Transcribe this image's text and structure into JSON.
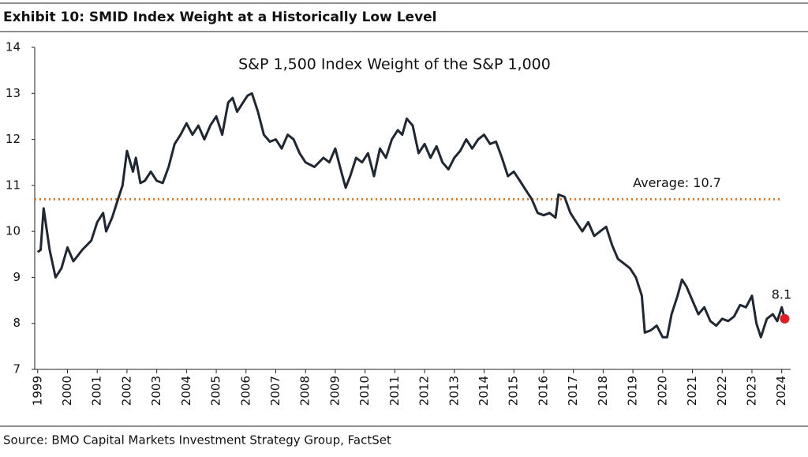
{
  "exhibit_title": "Exhibit 10: SMID Index Weight at a Historically Low Level",
  "source": "Source: BMO Capital Markets Investment Strategy Group, FactSet",
  "chart_data": {
    "type": "line",
    "title": "S&P 1,500 Index Weight of the S&P 1,000",
    "x": [
      1999.0,
      1999.1,
      1999.2,
      1999.4,
      1999.6,
      1999.8,
      2000.0,
      2000.2,
      2000.5,
      2000.8,
      2001.0,
      2001.2,
      2001.3,
      2001.5,
      2001.7,
      2001.85,
      2002.0,
      2002.2,
      2002.3,
      2002.45,
      2002.6,
      2002.8,
      2003.0,
      2003.2,
      2003.4,
      2003.6,
      2003.8,
      2004.0,
      2004.2,
      2004.4,
      2004.6,
      2004.8,
      2005.0,
      2005.2,
      2005.4,
      2005.55,
      2005.7,
      2005.9,
      2006.05,
      2006.2,
      2006.4,
      2006.6,
      2006.8,
      2007.0,
      2007.2,
      2007.4,
      2007.6,
      2007.8,
      2008.0,
      2008.3,
      2008.6,
      2008.8,
      2009.0,
      2009.2,
      2009.35,
      2009.5,
      2009.7,
      2009.9,
      2010.1,
      2010.3,
      2010.5,
      2010.7,
      2010.9,
      2011.1,
      2011.25,
      2011.4,
      2011.6,
      2011.8,
      2012.0,
      2012.2,
      2012.4,
      2012.6,
      2012.8,
      2013.0,
      2013.2,
      2013.4,
      2013.6,
      2013.8,
      2014.0,
      2014.2,
      2014.4,
      2014.6,
      2014.8,
      2015.0,
      2015.2,
      2015.4,
      2015.6,
      2015.8,
      2016.0,
      2016.2,
      2016.4,
      2016.5,
      2016.7,
      2016.9,
      2017.1,
      2017.3,
      2017.5,
      2017.7,
      2017.9,
      2018.1,
      2018.3,
      2018.5,
      2018.7,
      2018.9,
      2019.1,
      2019.3,
      2019.4,
      2019.6,
      2019.8,
      2020.0,
      2020.15,
      2020.3,
      2020.5,
      2020.65,
      2020.8,
      2021.0,
      2021.2,
      2021.4,
      2021.6,
      2021.8,
      2022.0,
      2022.2,
      2022.4,
      2022.6,
      2022.8,
      2023.0,
      2023.15,
      2023.3,
      2023.5,
      2023.7,
      2023.85,
      2024.0,
      2024.1
    ],
    "series": [
      {
        "color": "#1f2733",
        "values": [
          9.55,
          9.6,
          10.5,
          9.6,
          9.0,
          9.2,
          9.65,
          9.35,
          9.6,
          9.8,
          10.2,
          10.4,
          10.0,
          10.3,
          10.7,
          11.0,
          11.75,
          11.3,
          11.6,
          11.05,
          11.1,
          11.3,
          11.1,
          11.05,
          11.4,
          11.9,
          12.1,
          12.35,
          12.1,
          12.3,
          12.0,
          12.3,
          12.5,
          12.1,
          12.8,
          12.9,
          12.6,
          12.8,
          12.95,
          13.0,
          12.6,
          12.1,
          11.95,
          12.0,
          11.8,
          12.1,
          12.0,
          11.7,
          11.5,
          11.4,
          11.6,
          11.5,
          11.8,
          11.3,
          10.95,
          11.2,
          11.6,
          11.5,
          11.7,
          11.2,
          11.8,
          11.6,
          12.0,
          12.2,
          12.1,
          12.45,
          12.3,
          11.7,
          11.9,
          11.6,
          11.85,
          11.5,
          11.35,
          11.6,
          11.75,
          12.0,
          11.8,
          12.0,
          12.1,
          11.9,
          11.95,
          11.6,
          11.2,
          11.3,
          11.1,
          10.9,
          10.7,
          10.4,
          10.35,
          10.4,
          10.3,
          10.8,
          10.75,
          10.4,
          10.2,
          10.0,
          10.2,
          9.9,
          10.0,
          10.1,
          9.7,
          9.4,
          9.3,
          9.2,
          9.0,
          8.6,
          7.8,
          7.85,
          7.95,
          7.7,
          7.7,
          8.2,
          8.6,
          8.95,
          8.8,
          8.5,
          8.2,
          8.35,
          8.05,
          7.95,
          8.1,
          8.05,
          8.15,
          8.4,
          8.35,
          8.6,
          8.0,
          7.7,
          8.1,
          8.2,
          8.05,
          8.35,
          8.1
        ]
      }
    ],
    "average": {
      "value": 10.7,
      "label": "Average: 10.7",
      "color": "#e07b29"
    },
    "endpoint": {
      "x": 2024.1,
      "y": 8.1,
      "color": "#e31b23"
    },
    "xlim": [
      1998.9,
      2024.3
    ],
    "xticks": [
      1999,
      2000,
      2001,
      2002,
      2003,
      2004,
      2005,
      2006,
      2007,
      2008,
      2009,
      2010,
      2011,
      2012,
      2013,
      2014,
      2015,
      2016,
      2017,
      2018,
      2019,
      2020,
      2021,
      2022,
      2023,
      2024
    ],
    "ylim": [
      7,
      14
    ],
    "yticks": [
      7,
      8,
      9,
      10,
      11,
      12,
      13,
      14
    ]
  }
}
